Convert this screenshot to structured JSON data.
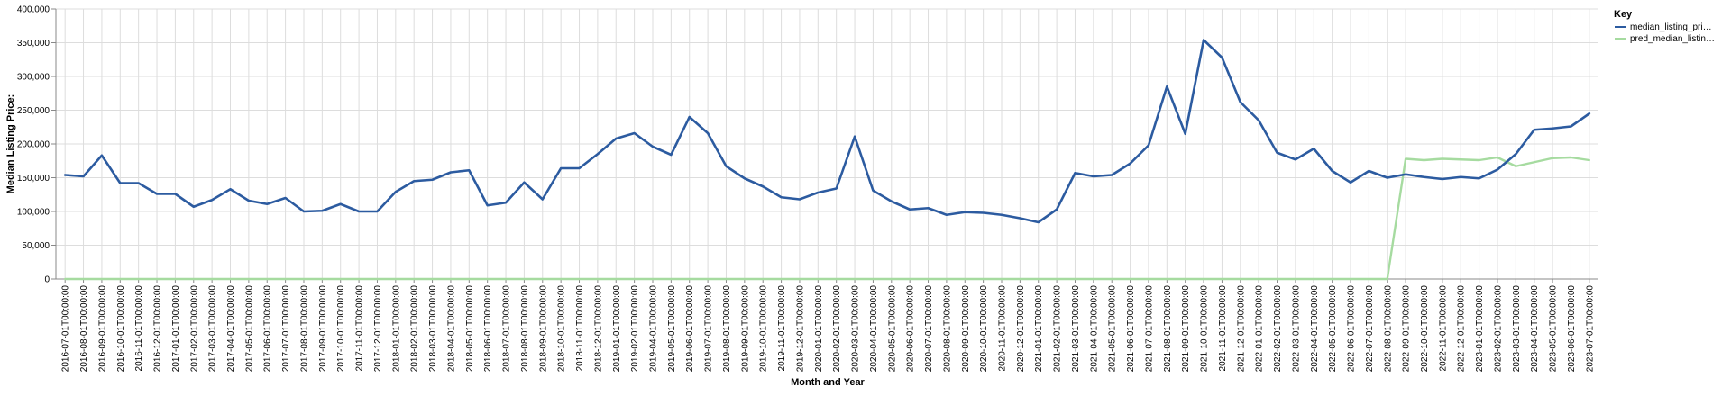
{
  "chart_data": {
    "type": "line",
    "xlabel": "Month and Year",
    "ylabel": "Median Listing Price:",
    "ylim": [
      0,
      400000
    ],
    "yticks": [
      0,
      50000,
      100000,
      150000,
      200000,
      250000,
      300000,
      350000,
      400000
    ],
    "ytick_labels": [
      "0",
      "50,000",
      "100,000",
      "150,000",
      "200,000",
      "250,000",
      "300,000",
      "350,000",
      "400,000"
    ],
    "grid": true,
    "legend": {
      "title": "Key",
      "position": "top-right",
      "entries": [
        {
          "label": "median_listing_pri…",
          "color": "#2c5ba0"
        },
        {
          "label": "pred_median_listin…",
          "color": "#a6dba0"
        }
      ]
    },
    "x": [
      "2016-07-01T00:00:00",
      "2016-08-01T00:00:00",
      "2016-09-01T00:00:00",
      "2016-10-01T00:00:00",
      "2016-11-01T00:00:00",
      "2016-12-01T00:00:00",
      "2017-01-01T00:00:00",
      "2017-02-01T00:00:00",
      "2017-03-01T00:00:00",
      "2017-04-01T00:00:00",
      "2017-05-01T00:00:00",
      "2017-06-01T00:00:00",
      "2017-07-01T00:00:00",
      "2017-08-01T00:00:00",
      "2017-09-01T00:00:00",
      "2017-10-01T00:00:00",
      "2017-11-01T00:00:00",
      "2017-12-01T00:00:00",
      "2018-01-01T00:00:00",
      "2018-02-01T00:00:00",
      "2018-03-01T00:00:00",
      "2018-04-01T00:00:00",
      "2018-05-01T00:00:00",
      "2018-06-01T00:00:00",
      "2018-07-01T00:00:00",
      "2018-08-01T00:00:00",
      "2018-09-01T00:00:00",
      "2018-10-01T00:00:00",
      "2018-11-01T00:00:00",
      "2018-12-01T00:00:00",
      "2019-01-01T00:00:00",
      "2019-02-01T00:00:00",
      "2019-04-01T00:00:00",
      "2019-05-01T00:00:00",
      "2019-06-01T00:00:00",
      "2019-07-01T00:00:00",
      "2019-08-01T00:00:00",
      "2019-09-01T00:00:00",
      "2019-10-01T00:00:00",
      "2019-11-01T00:00:00",
      "2019-12-01T00:00:00",
      "2020-01-01T00:00:00",
      "2020-02-01T00:00:00",
      "2020-03-01T00:00:00",
      "2020-04-01T00:00:00",
      "2020-05-01T00:00:00",
      "2020-06-01T00:00:00",
      "2020-07-01T00:00:00",
      "2020-08-01T00:00:00",
      "2020-09-01T00:00:00",
      "2020-10-01T00:00:00",
      "2020-11-01T00:00:00",
      "2020-12-01T00:00:00",
      "2021-01-01T00:00:00",
      "2021-02-01T00:00:00",
      "2021-03-01T00:00:00",
      "2021-04-01T00:00:00",
      "2021-05-01T00:00:00",
      "2021-06-01T00:00:00",
      "2021-07-01T00:00:00",
      "2021-08-01T00:00:00",
      "2021-09-01T00:00:00",
      "2021-10-01T00:00:00",
      "2021-11-01T00:00:00",
      "2021-12-01T00:00:00",
      "2022-01-01T00:00:00",
      "2022-02-01T00:00:00",
      "2022-03-01T00:00:00",
      "2022-04-01T00:00:00",
      "2022-05-01T00:00:00",
      "2022-06-01T00:00:00",
      "2022-07-01T00:00:00",
      "2022-08-01T00:00:00",
      "2022-09-01T00:00:00",
      "2022-10-01T00:00:00",
      "2022-11-01T00:00:00",
      "2022-12-01T00:00:00",
      "2023-01-01T00:00:00",
      "2023-02-01T00:00:00",
      "2023-03-01T00:00:00",
      "2023-04-01T00:00:00",
      "2023-05-01T00:00:00",
      "2023-06-01T00:00:00",
      "2023-07-01T00:00:00"
    ],
    "series": [
      {
        "name": "median_listing_pri…",
        "color": "#2c5ba0",
        "values": [
          154000,
          152000,
          183000,
          142000,
          142000,
          126000,
          126000,
          107000,
          117000,
          133000,
          116000,
          111000,
          120000,
          100000,
          101000,
          111000,
          100000,
          100000,
          129000,
          145000,
          147000,
          158000,
          161000,
          109000,
          113000,
          143000,
          118000,
          164000,
          164000,
          185000,
          208000,
          216000,
          196000,
          184000,
          240000,
          216000,
          167000,
          149000,
          137000,
          121000,
          118000,
          128000,
          134000,
          211000,
          131000,
          115000,
          103000,
          105000,
          95000,
          99000,
          98000,
          95000,
          90000,
          84000,
          103000,
          157000,
          152000,
          154000,
          171000,
          198000,
          285000,
          215000,
          354000,
          328000,
          262000,
          235000,
          187000,
          177000,
          193000,
          160000,
          143000,
          160000,
          150000,
          155000,
          151000,
          148000,
          151000,
          149000,
          162000,
          185000,
          221000,
          223000,
          226000,
          245000
        ]
      },
      {
        "name": "pred_median_listin…",
        "color": "#a6dba0",
        "values": [
          0,
          0,
          0,
          0,
          0,
          0,
          0,
          0,
          0,
          0,
          0,
          0,
          0,
          0,
          0,
          0,
          0,
          0,
          0,
          0,
          0,
          0,
          0,
          0,
          0,
          0,
          0,
          0,
          0,
          0,
          0,
          0,
          0,
          0,
          0,
          0,
          0,
          0,
          0,
          0,
          0,
          0,
          0,
          0,
          0,
          0,
          0,
          0,
          0,
          0,
          0,
          0,
          0,
          0,
          0,
          0,
          0,
          0,
          0,
          0,
          0,
          0,
          0,
          0,
          0,
          0,
          0,
          0,
          0,
          0,
          0,
          0,
          0,
          178000,
          176000,
          178000,
          177000,
          176000,
          180000,
          167000,
          173000,
          179000,
          180000,
          176000
        ]
      }
    ]
  }
}
